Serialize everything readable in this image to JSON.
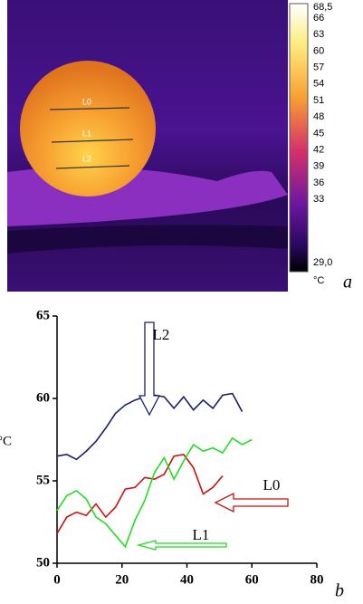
{
  "image": {
    "labels": [
      "L0",
      "L1",
      "L2"
    ],
    "colorbar": [
      "68,5",
      "66",
      "63",
      "60",
      "57",
      "54",
      "51",
      "48",
      "45",
      "42",
      "39",
      "36",
      "33",
      "29,0",
      "°C"
    ],
    "panel": "a"
  },
  "chart_data": {
    "type": "line",
    "panel": "b",
    "y_label": "°C",
    "x": [
      0,
      3,
      6,
      9,
      12,
      15,
      18,
      21,
      24,
      27,
      30,
      33,
      36,
      39,
      42,
      45,
      48,
      51,
      54,
      57,
      60
    ],
    "series": [
      {
        "name": "L2",
        "color": "#1a1f6e",
        "values": [
          56.5,
          56.6,
          56.3,
          56.8,
          57.4,
          58.2,
          59.1,
          59.6,
          59.9,
          60.1,
          60.2,
          60.1,
          59.4,
          60.1,
          59.3,
          59.9,
          59.4,
          60.2,
          60.3,
          59.2,
          null
        ]
      },
      {
        "name": "L0",
        "color": "#cc1010",
        "values": [
          51.8,
          52.8,
          53.1,
          52.9,
          53.6,
          52.8,
          53.4,
          54.5,
          54.6,
          55.2,
          55.1,
          55.4,
          56.5,
          56.6,
          55.8,
          54.2,
          54.6,
          55.3,
          null,
          null,
          null
        ]
      },
      {
        "name": "L1",
        "color": "#22dd22",
        "values": [
          53.2,
          54.1,
          54.4,
          53.9,
          52.8,
          52.4,
          51.7,
          51.0,
          52.6,
          53.8,
          55.5,
          56.4,
          55.1,
          56.2,
          57.2,
          56.8,
          57.0,
          56.7,
          57.6,
          57.2,
          57.5
        ]
      }
    ],
    "xlim": [
      0,
      80
    ],
    "xticks": [
      0,
      20,
      40,
      60,
      80
    ],
    "ylim": [
      50,
      65
    ],
    "yticks": [
      50,
      55,
      60,
      65
    ]
  }
}
